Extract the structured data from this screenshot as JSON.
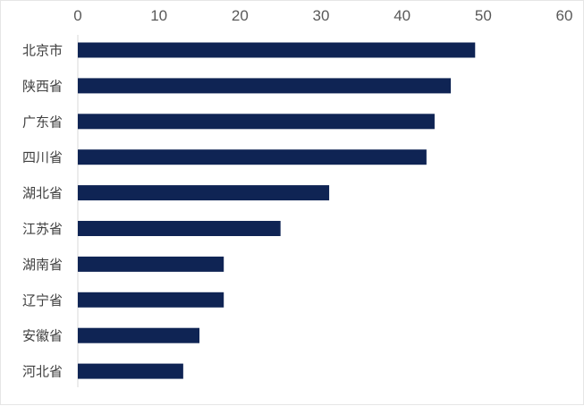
{
  "chart_data": {
    "type": "bar",
    "orientation": "horizontal",
    "categories": [
      "北京市",
      "陕西省",
      "广东省",
      "四川省",
      "湖北省",
      "江苏省",
      "湖南省",
      "辽宁省",
      "安徽省",
      "河北省"
    ],
    "values": [
      49,
      46,
      44,
      43,
      31,
      25,
      18,
      18,
      15,
      13
    ],
    "xlim": [
      0,
      60
    ],
    "xticks": [
      0,
      10,
      20,
      30,
      40,
      50,
      60
    ],
    "x_axis_position": "top",
    "grid": false,
    "legend": "none",
    "title": "",
    "xlabel": "",
    "ylabel": "",
    "colors": {
      "bar": "#0f2454",
      "axis": "#d9d9d9"
    }
  }
}
